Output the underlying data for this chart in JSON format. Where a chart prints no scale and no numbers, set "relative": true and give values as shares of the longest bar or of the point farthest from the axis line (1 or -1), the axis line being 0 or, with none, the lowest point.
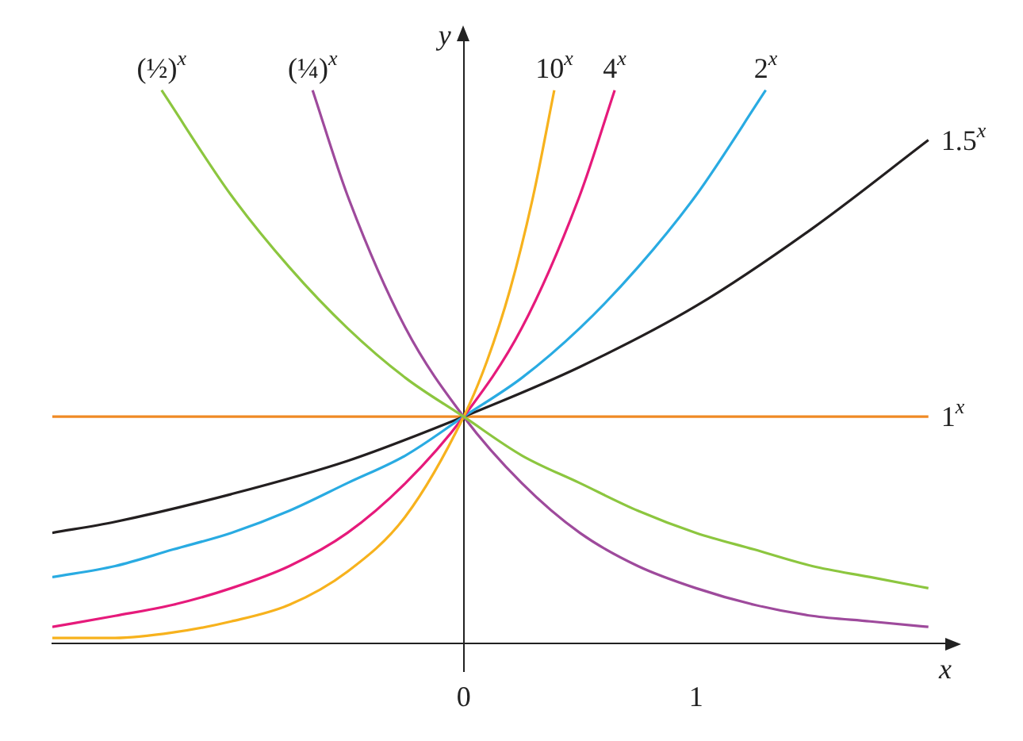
{
  "chart_data": {
    "type": "line",
    "relative": true,
    "xlabel": "x",
    "ylabel": "y",
    "xlim": [
      -1.77,
      2.1
    ],
    "xticks": [
      0,
      1
    ],
    "grid": false,
    "legend": false,
    "marker": "none",
    "line_style": "solid",
    "series": [
      {
        "name": "(½)$^{x}$",
        "color": "#8cc63f",
        "x": [
          -1.3,
          -1,
          -0.75,
          -0.5,
          -0.25,
          0,
          0.25,
          0.5,
          0.75,
          1,
          1.25,
          1.5,
          1.75,
          2
        ],
        "values": [
          1,
          0.81,
          0.68,
          0.57,
          0.48,
          0.41,
          0.34,
          0.29,
          0.24,
          0.2,
          0.17,
          0.14,
          0.12,
          0.1
        ]
      },
      {
        "name": "(¼)$^{x}$",
        "color": "#9e4a9c",
        "x": [
          -0.65,
          -0.5,
          -0.25,
          0,
          0.25,
          0.5,
          0.75,
          1,
          1.25,
          1.5,
          1.75,
          2
        ],
        "values": [
          1,
          0.81,
          0.57,
          0.41,
          0.29,
          0.2,
          0.14,
          0.1,
          0.07,
          0.05,
          0.04,
          0.03
        ]
      },
      {
        "name": "10$^{x}$",
        "color": "#f7b21d",
        "x": [
          -1.77,
          -1.5,
          -1.25,
          -1,
          -0.75,
          -0.5,
          -0.25,
          0,
          0.1,
          0.2,
          0.3,
          0.39
        ],
        "values": [
          0.01,
          0.01,
          0.02,
          0.04,
          0.07,
          0.13,
          0.23,
          0.41,
          0.51,
          0.64,
          0.81,
          1
        ]
      },
      {
        "name": "4$^{x}$",
        "color": "#e61a7b",
        "x": [
          -1.77,
          -1.5,
          -1.25,
          -1,
          -0.75,
          -0.5,
          -0.25,
          0,
          0.25,
          0.5,
          0.65
        ],
        "values": [
          0.03,
          0.05,
          0.07,
          0.1,
          0.14,
          0.2,
          0.29,
          0.41,
          0.57,
          0.81,
          1
        ]
      },
      {
        "name": "2$^{x}$",
        "color": "#29abe2",
        "x": [
          -1.77,
          -1.5,
          -1.25,
          -1,
          -0.75,
          -0.5,
          -0.25,
          0,
          0.25,
          0.5,
          0.75,
          1,
          1.3
        ],
        "values": [
          0.12,
          0.14,
          0.17,
          0.2,
          0.24,
          0.29,
          0.34,
          0.41,
          0.48,
          0.57,
          0.68,
          0.81,
          1
        ]
      },
      {
        "name": "1.5$^{x}$",
        "color": "#231f20",
        "x": [
          -1.77,
          -1.5,
          -1,
          -0.5,
          0,
          0.5,
          1,
          1.5,
          2
        ],
        "values": [
          0.2,
          0.22,
          0.27,
          0.33,
          0.41,
          0.5,
          0.61,
          0.75,
          0.91
        ]
      },
      {
        "name": "1$^{x}$",
        "color": "#f08a24",
        "x": [
          -1.77,
          2
        ],
        "values": [
          0.41,
          0.41
        ]
      }
    ]
  }
}
